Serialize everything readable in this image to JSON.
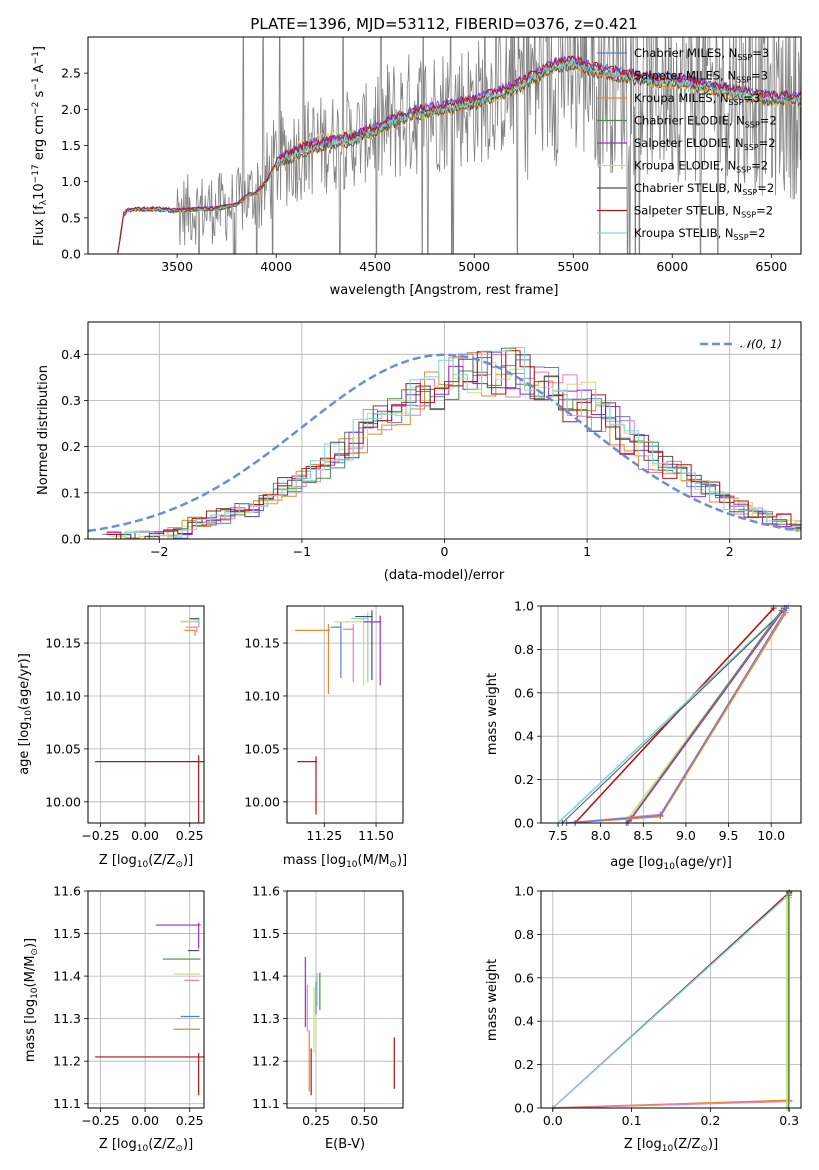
{
  "title": "PLATE=1396, MJD=53112, FIBERID=0376, z=0.421",
  "colors": {
    "chabrier_miles": "#5b7fd6",
    "salpeter_miles": "#e87fb7",
    "kroupa_miles": "#e5892e",
    "chabrier_elodie": "#4f8a50",
    "salpeter_elodie": "#9b2fd0",
    "kroupa_elodie": "#cfe07a",
    "chabrier_stelib": "#505050",
    "salpeter_stelib": "#b01515",
    "kroupa_stelib": "#7fd6da",
    "data": "#808080",
    "normal": "#6a8fd8"
  },
  "legend_spectrum": [
    {
      "model": "Chabrier MILES",
      "nssp": "3",
      "color_key": "chabrier_miles"
    },
    {
      "model": "Salpeter MILES",
      "nssp": "3",
      "color_key": "salpeter_miles"
    },
    {
      "model": "Kroupa MILES",
      "nssp": "3",
      "color_key": "kroupa_miles"
    },
    {
      "model": "Chabrier ELODIE",
      "nssp": "2",
      "color_key": "chabrier_elodie"
    },
    {
      "model": "Salpeter ELODIE",
      "nssp": "2",
      "color_key": "salpeter_elodie"
    },
    {
      "model": "Kroupa ELODIE",
      "nssp": "2",
      "color_key": "kroupa_elodie"
    },
    {
      "model": "Chabrier STELIB",
      "nssp": "2",
      "color_key": "chabrier_stelib"
    },
    {
      "model": "Salpeter STELIB",
      "nssp": "2",
      "color_key": "salpeter_stelib"
    },
    {
      "model": "Kroupa STELIB",
      "nssp": "2",
      "color_key": "kroupa_stelib"
    }
  ],
  "chart_data": [
    {
      "id": "spectrum",
      "type": "line",
      "title": "PLATE=1396, MJD=53112, FIBERID=0376, z=0.421",
      "xlabel": "wavelength [Angstrom, rest frame]",
      "ylabel_main": "Flux [f",
      "ylabel_sub": "λ",
      "ylabel_rest": "10",
      "ylabel_sup": "−17",
      "ylabel_units": " erg cm",
      "ylabel_sup2": "−2",
      "ylabel_units2": " s",
      "ylabel_sup3": "−1",
      "ylabel_units3": " A",
      "ylabel_sup4": "−1",
      "ylabel_end": "]",
      "xlim": [
        3050,
        6650
      ],
      "ylim": [
        0,
        3.0
      ],
      "xticks": [
        "3500",
        "4000",
        "4500",
        "5000",
        "5500",
        "6000",
        "6500"
      ],
      "yticks": [
        "0.0",
        "0.5",
        "1.0",
        "1.5",
        "2.0",
        "2.5"
      ],
      "model_envelope": {
        "x": [
          3200,
          3230,
          3250,
          3300,
          3400,
          3500,
          3600,
          3700,
          3800,
          3850,
          3900,
          3950,
          4000,
          4100,
          4200,
          4300,
          4400,
          4500,
          4600,
          4700,
          4800,
          4900,
          5000,
          5100,
          5200,
          5300,
          5400,
          5500,
          5600,
          5700,
          5800,
          5900,
          6000,
          6100,
          6200,
          6300,
          6400,
          6500
        ],
        "y": [
          0.0,
          0.55,
          0.6,
          0.62,
          0.62,
          0.6,
          0.62,
          0.63,
          0.68,
          0.8,
          0.85,
          1.0,
          1.25,
          1.4,
          1.5,
          1.55,
          1.6,
          1.72,
          1.85,
          1.95,
          2.0,
          2.05,
          2.1,
          2.2,
          2.3,
          2.45,
          2.6,
          2.65,
          2.55,
          2.5,
          2.45,
          2.4,
          2.4,
          2.35,
          2.3,
          2.25,
          2.2,
          2.15
        ]
      }
    },
    {
      "id": "residuals",
      "type": "histogram",
      "xlabel": "(data-model)/error",
      "ylabel": "Normed distribution",
      "xlim": [
        -2.5,
        2.5
      ],
      "ylim": [
        0,
        0.47
      ],
      "xticks": [
        "−2",
        "−1",
        "0",
        "1",
        "2"
      ],
      "yticks": [
        "0.0",
        "0.1",
        "0.2",
        "0.3",
        "0.4"
      ],
      "legend": "𝒩(0, 1)"
    },
    {
      "id": "age_vs_Z",
      "type": "errorbar",
      "xlabel": "Z [log",
      "xlabel_sub": "10",
      "xlabel_end": "(Z/Z",
      "xlabel_sub2": "⊙",
      "xlabel_close": ")]",
      "ylabel": "age  [log",
      "ylabel_sub": "10",
      "ylabel_end": "(age/yr)]",
      "xlim": [
        -0.32,
        0.33
      ],
      "ylim": [
        9.98,
        10.185
      ],
      "xticks": [
        "−0.25",
        "0.00",
        "0.25"
      ],
      "yticks": [
        "10.00",
        "10.05",
        "10.10",
        "10.15"
      ],
      "points": [
        {
          "k": "salpeter_stelib",
          "x": 0.3,
          "y": 10.038,
          "xerr": 0.58,
          "yerr": 0.06
        },
        {
          "k": "chabrier_miles",
          "x": 0.3,
          "y": 10.17,
          "xerr": 0.03,
          "yerr": 0.005
        },
        {
          "k": "salpeter_miles",
          "x": 0.29,
          "y": 10.165,
          "xerr": 0.06,
          "yerr": 0.005
        },
        {
          "k": "kroupa_miles",
          "x": 0.28,
          "y": 10.162,
          "xerr": 0.06,
          "yerr": 0.005
        },
        {
          "k": "salpeter_elodie",
          "x": 0.3,
          "y": 10.17,
          "xerr": 0.1,
          "yerr": 0.004
        },
        {
          "k": "kroupa_elodie",
          "x": 0.3,
          "y": 10.17,
          "xerr": 0.1,
          "yerr": 0.004
        },
        {
          "k": "chabrier_stelib",
          "x": 0.3,
          "y": 10.173,
          "xerr": 0.05,
          "yerr": 0.003
        },
        {
          "k": "kroupa_stelib",
          "x": 0.3,
          "y": 10.172,
          "xerr": 0.03,
          "yerr": 0.003
        }
      ]
    },
    {
      "id": "age_vs_mass",
      "type": "errorbar",
      "xlabel": "mass [log",
      "xlabel_sub": "10",
      "xlabel_end": "(M/M",
      "xlabel_sub2": "⊙",
      "xlabel_close": ")]",
      "xlim": [
        11.07,
        11.63
      ],
      "ylim": [
        9.98,
        10.185
      ],
      "xticks": [
        "11.25",
        "11.50"
      ],
      "yticks": [
        "10.00",
        "10.05",
        "10.10",
        "10.15"
      ],
      "points": [
        {
          "k": "salpeter_stelib",
          "x": 11.21,
          "y": 10.038,
          "xerr": 0.09,
          "yerr": 0.05
        },
        {
          "k": "kroupa_miles",
          "x": 11.27,
          "y": 10.162,
          "xerr": 0.16,
          "yerr": 0.06
        },
        {
          "k": "chabrier_miles",
          "x": 11.33,
          "y": 10.165,
          "xerr": 0.05,
          "yerr": 0.048
        },
        {
          "k": "salpeter_miles",
          "x": 11.39,
          "y": 10.163,
          "xerr": 0.05,
          "yerr": 0.05
        },
        {
          "k": "kroupa_elodie",
          "x": 11.44,
          "y": 10.17,
          "xerr": 0.14,
          "yerr": 0.06
        },
        {
          "k": "kroupa_stelib",
          "x": 11.46,
          "y": 10.173,
          "xerr": 0.08,
          "yerr": 0.06
        },
        {
          "k": "chabrier_stelib",
          "x": 11.48,
          "y": 10.175,
          "xerr": 0.08,
          "yerr": 0.06
        },
        {
          "k": "salpeter_elodie",
          "x": 11.52,
          "y": 10.17,
          "xerr": 0.08,
          "yerr": 0.06
        }
      ]
    },
    {
      "id": "weight_vs_age",
      "type": "line",
      "xlabel": "age  [log",
      "xlabel_sub": "10",
      "xlabel_end": "(age/yr)]",
      "ylabel": "mass weight",
      "xlim": [
        7.3,
        10.35
      ],
      "ylim": [
        0,
        1.0
      ],
      "xticks": [
        "7.5",
        "8.0",
        "8.5",
        "9.0",
        "9.5",
        "10.0"
      ],
      "yticks": [
        "0.0",
        "0.2",
        "0.4",
        "0.6",
        "0.8",
        "1.0"
      ]
    },
    {
      "id": "mass_vs_Z",
      "type": "errorbar",
      "xlabel": "Z [log",
      "xlabel_sub": "10",
      "xlabel_end": "(Z/Z",
      "xlabel_sub2": "⊙",
      "xlabel_close": ")]",
      "ylabel": "mass [log",
      "ylabel_sub": "10",
      "ylabel_end": "(M/M",
      "ylabel_sub2": "⊙",
      "ylabel_close": ")]",
      "xlim": [
        -0.32,
        0.33
      ],
      "ylim": [
        11.09,
        11.6
      ],
      "xticks": [
        "−0.25",
        "0.00",
        "0.25"
      ],
      "yticks": [
        "11.1",
        "11.2",
        "11.3",
        "11.4",
        "11.5",
        "11.6"
      ],
      "points": [
        {
          "k": "salpeter_stelib",
          "x": 0.3,
          "y": 11.21,
          "xerr": 0.58,
          "yerr": 0.09
        },
        {
          "k": "kroupa_miles",
          "x": 0.3,
          "y": 11.275,
          "xerr": 0.14,
          "yerr": 0.0
        },
        {
          "k": "chabrier_miles",
          "x": 0.3,
          "y": 11.305,
          "xerr": 0.1,
          "yerr": 0.0
        },
        {
          "k": "salpeter_miles",
          "x": 0.3,
          "y": 11.39,
          "xerr": 0.08,
          "yerr": 0.0
        },
        {
          "k": "kroupa_elodie",
          "x": 0.3,
          "y": 11.405,
          "xerr": 0.14,
          "yerr": 0.0
        },
        {
          "k": "chabrier_elodie",
          "x": 0.3,
          "y": 11.44,
          "xerr": 0.2,
          "yerr": 0.0
        },
        {
          "k": "chabrier_stelib",
          "x": 0.3,
          "y": 11.46,
          "xerr": 0.06,
          "yerr": 0.0
        },
        {
          "k": "salpeter_elodie",
          "x": 0.3,
          "y": 11.52,
          "xerr": 0.24,
          "yerr": 0.055
        }
      ]
    },
    {
      "id": "mass_vs_ebv",
      "type": "errorbar",
      "xlabel": "E(B-V)",
      "xlim": [
        0.1,
        0.7
      ],
      "ylim": [
        11.09,
        11.6
      ],
      "xticks": [
        "0.25",
        "0.50"
      ],
      "yticks": [
        "11.1",
        "11.2",
        "11.3",
        "11.4",
        "11.5",
        "11.6"
      ],
      "points": [
        {
          "k": "salpeter_elodie",
          "x": 0.195,
          "y": 11.43,
          "yerr": 0.15
        },
        {
          "k": "salpeter_miles",
          "x": 0.205,
          "y": 11.37,
          "yerr": 0.1
        },
        {
          "k": "kroupa_miles",
          "x": 0.215,
          "y": 11.26,
          "yerr": 0.13
        },
        {
          "k": "salpeter_stelib",
          "x": 0.225,
          "y": 11.22,
          "yerr": 0.1
        },
        {
          "k": "kroupa_elodie",
          "x": 0.24,
          "y": 11.36,
          "yerr": 0.14
        },
        {
          "k": "chabrier_miles",
          "x": 0.25,
          "y": 11.38,
          "yerr": 0.07
        },
        {
          "k": "kroupa_stelib",
          "x": 0.255,
          "y": 11.4,
          "yerr": 0.07
        },
        {
          "k": "chabrier_elodie",
          "x": 0.27,
          "y": 11.4,
          "yerr": 0.08
        },
        {
          "k": "salpeter_stelib",
          "x": 0.655,
          "y": 11.245,
          "yerr": 0.11
        }
      ]
    },
    {
      "id": "weight_vs_Z",
      "type": "line",
      "xlabel": "Z [log",
      "xlabel_sub": "10",
      "xlabel_end": "(Z/Z",
      "xlabel_sub2": "⊙",
      "xlabel_close": ")]",
      "ylabel": "mass weight",
      "xlim": [
        -0.015,
        0.315
      ],
      "ylim": [
        0,
        1.0
      ],
      "xticks": [
        "0.0",
        "0.1",
        "0.2",
        "0.3"
      ],
      "yticks": [
        "0.0",
        "0.2",
        "0.4",
        "0.6",
        "0.8",
        "1.0"
      ]
    }
  ]
}
